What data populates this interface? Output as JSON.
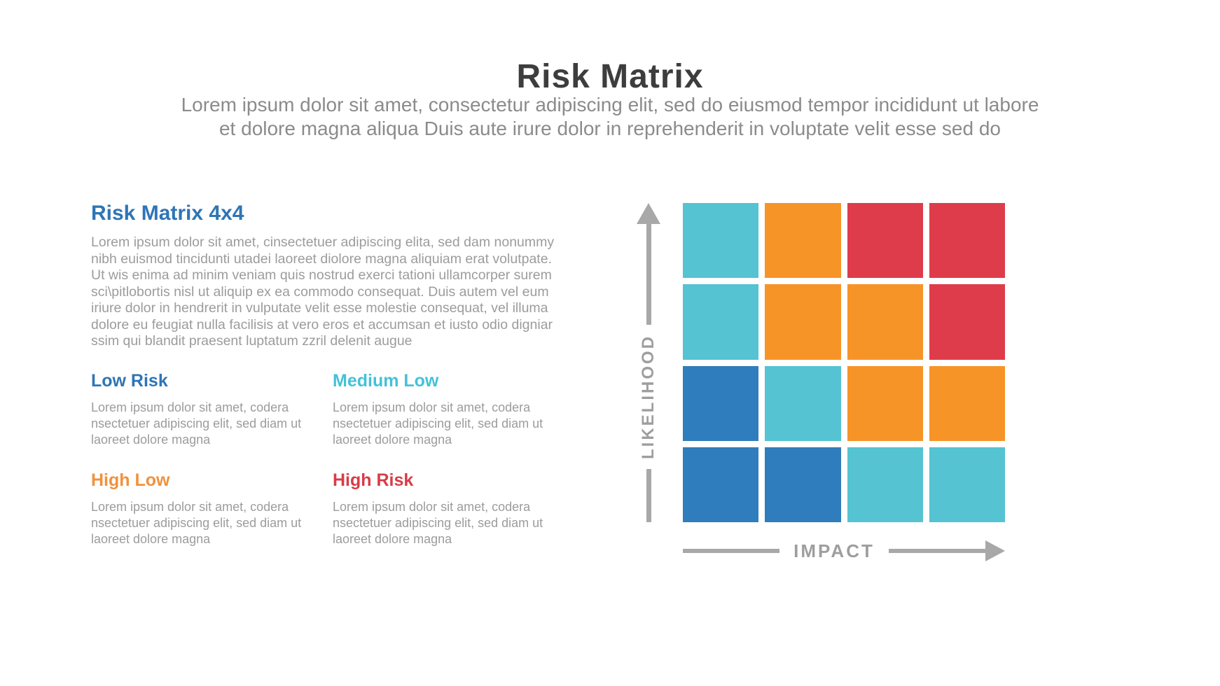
{
  "title": "Risk Matrix",
  "subtitle": {
    "line1": "Lorem ipsum dolor sit amet, consectetur adipiscing elit, sed do eiusmod tempor incididunt ut labore",
    "line2": "et dolore magna aliqua Duis aute irure dolor in reprehenderit in voluptate velit esse sed do"
  },
  "left": {
    "heading": "Risk Matrix 4x4",
    "paragraph": "Lorem ipsum dolor sit amet, cinsectetuer adipiscing elita, sed dam nonummy nibh euismod tincidunti utadei laoreet diolore magna aliquiam erat volutpate. Ut wis enima ad minim veniam quis nostrud exerci tationi ullamcorper surem sci\\pitlobortis nisl ut aliquip ex ea commodo consequat. Duis autem vel eum iriure dolor in hendrerit in vulputate velit esse molestie consequat, vel illuma dolore eu feugiat nulla facilisis at vero eros et accumsan et iusto odio digniar ssim qui blandit praesent luptatum zzril delenit augue",
    "items": [
      {
        "label": "Low Risk",
        "color": "#2e75b6",
        "body": "Lorem ipsum dolor sit amet, codera nsectetuer adipiscing elit, sed diam ut laoreet dolore magna"
      },
      {
        "label": "Medium Low",
        "color": "#45c1d8",
        "body": "Lorem ipsum dolor sit amet, codera nsectetuer adipiscing elit, sed diam ut laoreet dolore magna"
      },
      {
        "label": "High Low",
        "color": "#f0923e",
        "body": "Lorem ipsum dolor sit amet, codera nsectetuer adipiscing elit, sed diam ut laoreet dolore magna"
      },
      {
        "label": "High Risk",
        "color": "#d83c48",
        "body": "Lorem ipsum dolor sit amet, codera nsectetuer adipiscing elit, sed diam ut laoreet dolore magna"
      }
    ]
  },
  "matrix": {
    "y_axis_label": "LIKELIHOOD",
    "x_axis_label": "IMPACT",
    "axis_color": "#a8a8a8",
    "levels": {
      "low": "#2f7dbc",
      "medium_low": "#55c3d2",
      "high_low": "#f79428",
      "high_risk": "#de3c4a"
    },
    "rows": [
      [
        "medium_low",
        "high_low",
        "high_risk",
        "high_risk"
      ],
      [
        "medium_low",
        "high_low",
        "high_low",
        "high_risk"
      ],
      [
        "low",
        "medium_low",
        "high_low",
        "high_low"
      ],
      [
        "low",
        "low",
        "medium_low",
        "medium_low"
      ]
    ]
  }
}
